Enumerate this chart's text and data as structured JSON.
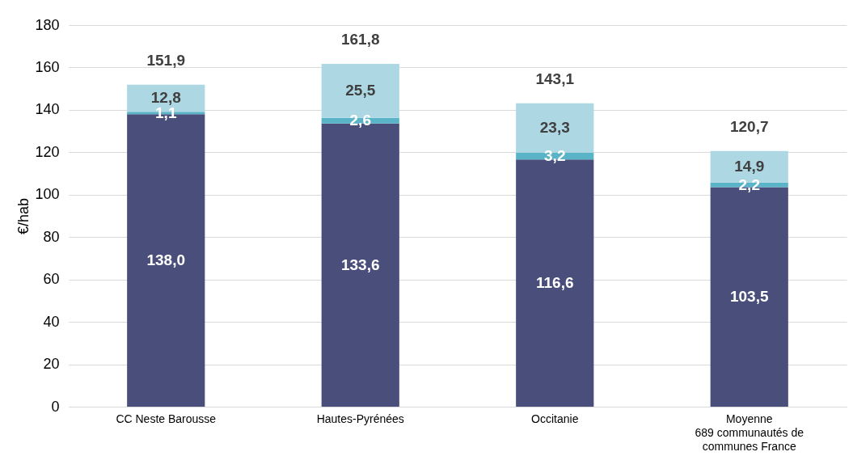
{
  "chart_data": {
    "type": "bar",
    "stacked": true,
    "ylabel": "€/hab",
    "categories": [
      "CC Neste Barousse",
      "Hautes-Pyrénées",
      "Occitanie",
      "Moyenne\n689 communautés de\ncommunes France"
    ],
    "series": [
      {
        "color": "#4a4e7a",
        "values": [
          138.0,
          133.6,
          116.6,
          103.5
        ],
        "value_labels": [
          "138,0",
          "133,6",
          "116,6",
          "103,5"
        ]
      },
      {
        "color": "#5ab4c8",
        "values": [
          1.1,
          2.6,
          3.2,
          2.2
        ],
        "value_labels": [
          "1,1",
          "2,6",
          "3,2",
          "2,2"
        ]
      },
      {
        "color": "#acd7e3",
        "values": [
          12.8,
          25.5,
          23.3,
          14.9
        ],
        "value_labels": [
          "12,8",
          "25,5",
          "23,3",
          "14,9"
        ]
      }
    ],
    "totals": [
      "151,9",
      "161,8",
      "143,1",
      "120,7"
    ],
    "ylim": [
      0,
      180
    ],
    "yticks": [
      0,
      20,
      40,
      60,
      80,
      100,
      120,
      140,
      160,
      180
    ],
    "grid": "y",
    "legend": false
  }
}
